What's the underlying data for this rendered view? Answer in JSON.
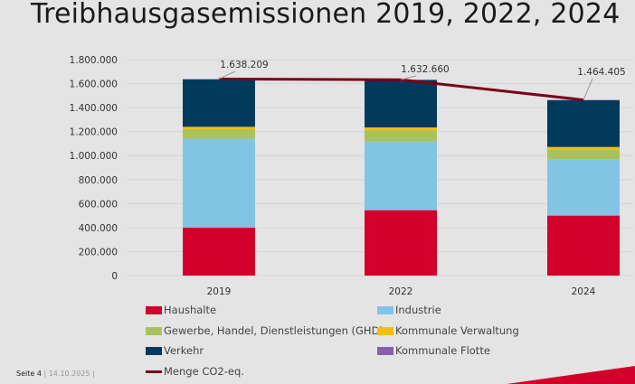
{
  "chart_data": {
    "type": "bar",
    "stacked": true,
    "title": "Treibhausgasemissionen 2019, 2022, 2024",
    "categories": [
      "2019",
      "2022",
      "2024"
    ],
    "ylim": [
      0,
      1800000
    ],
    "yticks": [
      "0",
      "200.000",
      "400.000",
      "600.000",
      "800.000",
      "1.000.000",
      "1.200.000",
      "1.400.000",
      "1.600.000",
      "1.800.000"
    ],
    "grid": true,
    "legend_position": "bottom",
    "series": [
      {
        "name": "Haushalte",
        "color": "#d3002b",
        "values": [
          400000,
          545000,
          500000
        ]
      },
      {
        "name": "Industrie",
        "color": "#82c4e4",
        "values": [
          740000,
          572000,
          471000
        ]
      },
      {
        "name": "Gewerbe, Handel, Dienstleistungen (GHD)",
        "color": "#a9c25c",
        "values": [
          80000,
          95000,
          81000
        ]
      },
      {
        "name": "Kommunale Verwaltung",
        "color": "#f5c000",
        "values": [
          20000,
          23000,
          20000
        ]
      },
      {
        "name": "Verkehr",
        "color": "#003a5d",
        "values": [
          396000,
          395000,
          390000
        ]
      },
      {
        "name": "Kommunale Flotte",
        "color": "#8660a8",
        "values": [
          2209,
          2660,
          2405
        ]
      }
    ],
    "line": {
      "name": "Menge CO2-eq.",
      "color": "#7a0019",
      "values": [
        1638209,
        1632660,
        1464405
      ],
      "labels": [
        "1.638.209",
        "1.632.660",
        "1.464.405"
      ]
    }
  },
  "footer": {
    "page": "Seite 4",
    "date": "14.10.2025"
  }
}
